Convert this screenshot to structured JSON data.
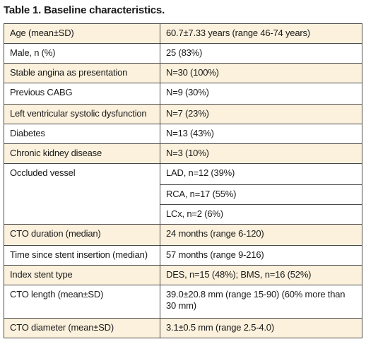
{
  "title": "Table 1. Baseline characteristics.",
  "rows": [
    {
      "label": "Age (mean±SD)",
      "value": "60.7±7.33 years (range 46-74 years)"
    },
    {
      "label": "Male, n (%)",
      "value": "25 (83%)"
    },
    {
      "label": "Stable angina as presentation",
      "value": "N=30 (100%)"
    },
    {
      "label": "Previous CABG",
      "value": "N=9 (30%)"
    },
    {
      "label": "Left ventricular systolic dysfunction",
      "value": "N=7 (23%)"
    },
    {
      "label": "Diabetes",
      "value": "N=13 (43%)"
    },
    {
      "label": "Chronic kidney disease",
      "value": "N=3 (10%)"
    },
    {
      "label": "Occluded vessel",
      "values": [
        "LAD, n=12 (39%)",
        "RCA, n=17 (55%)",
        "LCx, n=2 (6%)"
      ]
    },
    {
      "label": "CTO duration (median)",
      "value": "24 months (range 6-120)"
    },
    {
      "label": "Time since stent insertion (median)",
      "value": "57 months (range 9-216)"
    },
    {
      "label": "Index stent type",
      "value": "DES, n=15 (48%); BMS, n=16 (52%)"
    },
    {
      "label": "CTO length (mean±SD)",
      "value": "39.0±20.8 mm (range 15-90) (60% more than 30 mm)"
    },
    {
      "label": "CTO diameter (mean±SD)",
      "value": "3.1±0.5 mm (range 2.5-4.0)"
    }
  ],
  "colors": {
    "shaded_row": "#fbf1dd",
    "border": "#4a4a4a"
  }
}
